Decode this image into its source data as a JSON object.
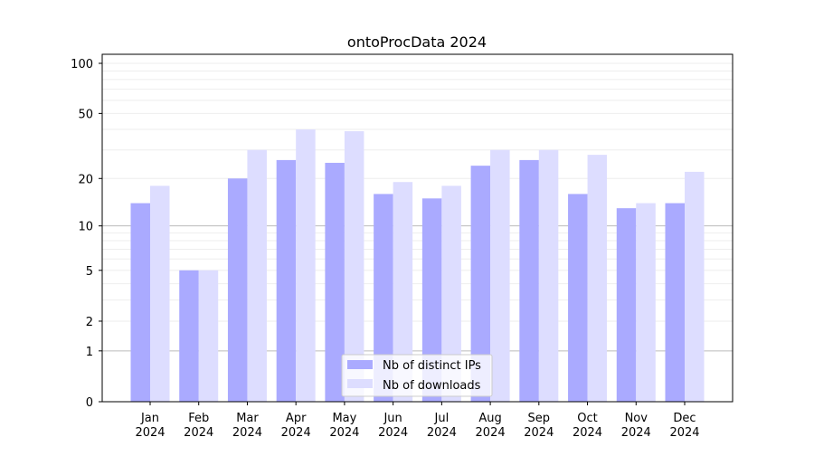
{
  "chart_data": {
    "type": "bar",
    "title": "ontoProcData 2024",
    "xlabel": "",
    "ylabel": "",
    "y_scale": "log(1+y)",
    "y_ticks": [
      0,
      1,
      2,
      5,
      10,
      20,
      50,
      100
    ],
    "ylim": [
      0,
      100
    ],
    "grid": true,
    "legend_position": "bottom-center",
    "categories": [
      "Jan\n2024",
      "Feb\n2024",
      "Mar\n2024",
      "Apr\n2024",
      "May\n2024",
      "Jun\n2024",
      "Jul\n2024",
      "Aug\n2024",
      "Sep\n2024",
      "Oct\n2024",
      "Nov\n2024",
      "Dec\n2024"
    ],
    "series": [
      {
        "name": "Nb of distinct IPs",
        "color": "#aaaaff",
        "values": [
          14,
          5,
          20,
          26,
          25,
          16,
          15,
          24,
          26,
          16,
          13,
          14
        ]
      },
      {
        "name": "Nb of downloads",
        "color": "#ddddff",
        "values": [
          18,
          5,
          30,
          40,
          39,
          19,
          18,
          30,
          30,
          28,
          14,
          22
        ]
      }
    ]
  }
}
